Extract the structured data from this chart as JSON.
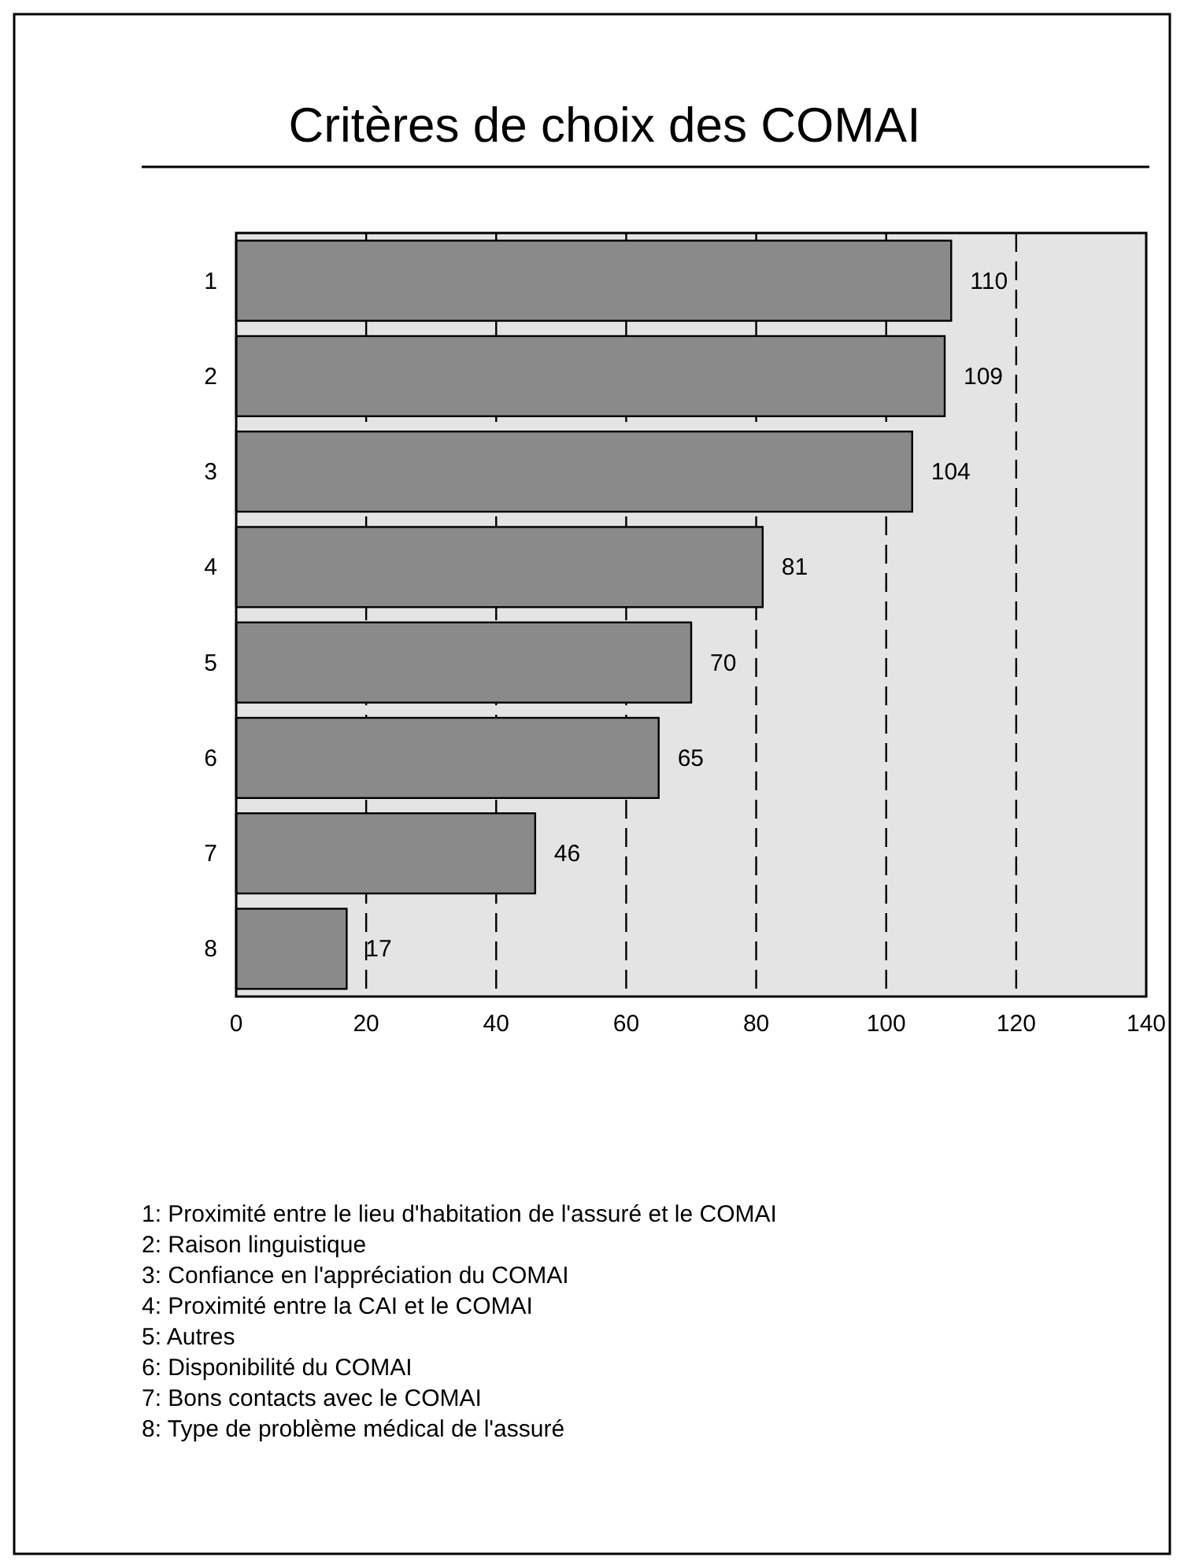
{
  "chart_data": {
    "type": "bar",
    "orientation": "horizontal",
    "title": "Critères de choix des COMAI",
    "categories": [
      "1",
      "2",
      "3",
      "4",
      "5",
      "6",
      "7",
      "8"
    ],
    "values": [
      110,
      109,
      104,
      81,
      70,
      65,
      46,
      17
    ],
    "color": "#8a8a8a",
    "data_labels": true,
    "grid": "x",
    "xlim": [
      0,
      140
    ],
    "xticks": [
      0,
      20,
      40,
      60,
      80,
      100,
      120,
      140
    ],
    "annotations": [
      "1: Proximité entre le lieu d'habitation de l'assuré et le COMAI",
      "2: Raison linguistique",
      "3: Confiance en l'appréciation du COMAI",
      "4: Proximité entre la CAI et le COMAI",
      "5: Autres",
      "6: Disponibilité du COMAI",
      "7: Bons contacts avec le COMAI",
      "8: Type de problème médical de l'assuré"
    ]
  }
}
